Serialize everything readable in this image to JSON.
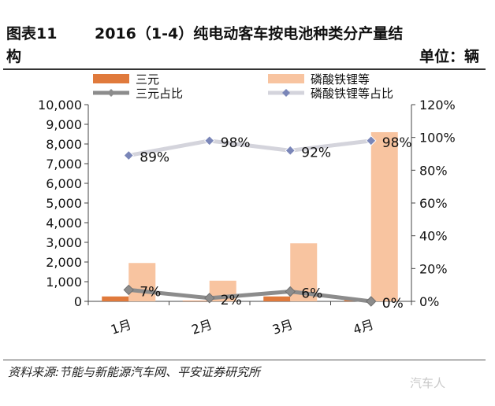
{
  "header": {
    "figure_label": "图表11",
    "figure_label_cont": "构",
    "title": "2016（1-4）纯电动客车按电池种类分产量结",
    "unit": "单位：辆"
  },
  "source": "资料来源:节能与新能源汽车网、平安证券研究所",
  "watermark": "汽车人",
  "chart_data": {
    "type": "bar",
    "categories": [
      "1月",
      "2月",
      "3月",
      "4月"
    ],
    "series": [
      {
        "name": "三元",
        "type": "bar",
        "axis": "left",
        "color": "#e07a3c",
        "values": [
          250,
          30,
          250,
          100
        ]
      },
      {
        "name": "磷酸铁锂等",
        "type": "bar",
        "axis": "left",
        "color": "#f8c4a0",
        "values": [
          1950,
          1050,
          2950,
          8600
        ]
      },
      {
        "name": "三元占比",
        "type": "line",
        "axis": "right",
        "color": "#8c8c8c",
        "values": [
          7,
          2,
          6,
          0
        ],
        "labels": [
          "7%",
          "2%",
          "6%",
          "0%"
        ]
      },
      {
        "name": "磷酸铁锂等占比",
        "type": "line",
        "axis": "right",
        "color": "#d8d8e0",
        "values": [
          89,
          98,
          92,
          98
        ],
        "labels": [
          "89%",
          "98%",
          "92%",
          "98%"
        ]
      }
    ],
    "y_left": {
      "min": 0,
      "max": 10000,
      "ticks": [
        "0",
        "1,000",
        "2,000",
        "3,000",
        "4,000",
        "5,000",
        "6,000",
        "7,000",
        "8,000",
        "9,000",
        "10,000"
      ]
    },
    "y_right": {
      "min": 0,
      "max": 120,
      "ticks": [
        "0%",
        "20%",
        "40%",
        "60%",
        "80%",
        "100%",
        "120%"
      ]
    },
    "grid": false,
    "legend": "top"
  }
}
